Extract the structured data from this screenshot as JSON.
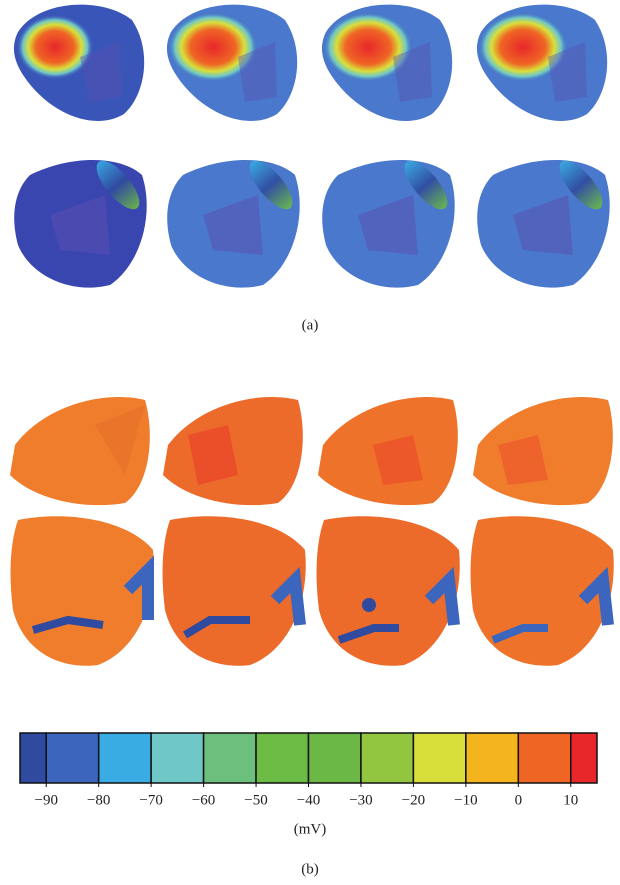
{
  "panels": [
    {
      "label": "(a)"
    },
    {
      "label": "(b)"
    }
  ],
  "colorbar": {
    "unit": "(mV)",
    "bounds": [
      -95,
      -90,
      -80,
      -70,
      -60,
      -50,
      -40,
      -30,
      -20,
      -10,
      0,
      10,
      15
    ],
    "colors": [
      "#2f4a9e",
      "#3c66bd",
      "#38ace3",
      "#6fc7c8",
      "#6cbf7d",
      "#6cbb45",
      "#6cb846",
      "#93c640",
      "#d9df3a",
      "#f4b41d",
      "#ef6524",
      "#e8272b"
    ],
    "lim": [
      -95,
      15
    ],
    "ticks": [
      {
        "value": -90,
        "label": "−90"
      },
      {
        "value": -80,
        "label": "−80"
      },
      {
        "value": -70,
        "label": "−70"
      },
      {
        "value": -60,
        "label": "−60"
      },
      {
        "value": -50,
        "label": "−50"
      },
      {
        "value": -40,
        "label": "−40"
      },
      {
        "value": -30,
        "label": "−30"
      },
      {
        "value": -20,
        "label": "−20"
      },
      {
        "value": -10,
        "label": "−10"
      },
      0,
      10
    ]
  }
}
